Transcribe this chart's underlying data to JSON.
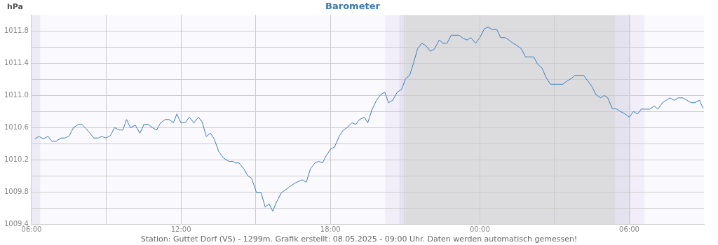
{
  "chart_data": {
    "type": "line",
    "title": "Barometer",
    "ylabel": "hPa",
    "annotations": [
      "Station: Guttet Dorf (VS) - 1299m. Grafik erstellt: 08.05.2025 - 09:00 Uhr. Daten werden automatisch gemessen!"
    ],
    "x": [
      "2025-05-07T06:08",
      "2025-05-07T06:18",
      "2025-05-07T06:28",
      "2025-05-07T06:40",
      "2025-05-07T06:49",
      "2025-05-07T06:59",
      "2025-05-07T07:11",
      "2025-05-07T07:21",
      "2025-05-07T07:31",
      "2025-05-07T07:41",
      "2025-05-07T07:53",
      "2025-05-07T08:01",
      "2025-05-07T08:11",
      "2025-05-07T08:21",
      "2025-05-07T08:30",
      "2025-05-07T08:41",
      "2025-05-07T08:49",
      "2025-05-07T08:59",
      "2025-05-07T09:10",
      "2025-05-07T09:20",
      "2025-05-07T09:31",
      "2025-05-07T09:40",
      "2025-05-07T09:49",
      "2025-05-07T09:58",
      "2025-05-07T10:10",
      "2025-05-07T10:21",
      "2025-05-07T10:31",
      "2025-05-07T10:41",
      "2025-05-07T10:51",
      "2025-05-07T11:01",
      "2025-05-07T11:11",
      "2025-05-07T11:22",
      "2025-05-07T11:32",
      "2025-05-07T11:42",
      "2025-05-07T11:50",
      "2025-05-07T12:00",
      "2025-05-07T12:10",
      "2025-05-07T12:20",
      "2025-05-07T12:31",
      "2025-05-07T12:42",
      "2025-05-07T12:51",
      "2025-05-07T13:01",
      "2025-05-07T13:11",
      "2025-05-07T13:20",
      "2025-05-07T13:31",
      "2025-05-07T13:43",
      "2025-05-07T13:55",
      "2025-05-07T14:06",
      "2025-05-07T14:11",
      "2025-05-07T14:20",
      "2025-05-07T14:31",
      "2025-05-07T14:41",
      "2025-05-07T14:50",
      "2025-05-07T15:02",
      "2025-05-07T15:13",
      "2025-05-07T15:23",
      "2025-05-07T15:32",
      "2025-05-07T15:41",
      "2025-05-07T15:50",
      "2025-05-07T16:02",
      "2025-05-07T16:13",
      "2025-05-07T16:23",
      "2025-05-07T16:35",
      "2025-05-07T16:52",
      "2025-05-07T17:02",
      "2025-05-07T17:12",
      "2025-05-07T17:23",
      "2025-05-07T17:32",
      "2025-05-07T17:41",
      "2025-05-07T17:50",
      "2025-05-07T18:00",
      "2025-05-07T18:10",
      "2025-05-07T18:22",
      "2025-05-07T18:31",
      "2025-05-07T18:40",
      "2025-05-07T18:52",
      "2025-05-07T19:01",
      "2025-05-07T19:10",
      "2025-05-07T19:22",
      "2025-05-07T19:30",
      "2025-05-07T19:40",
      "2025-05-07T19:51",
      "2025-05-07T20:01",
      "2025-05-07T20:11",
      "2025-05-07T20:20",
      "2025-05-07T20:30",
      "2025-05-07T20:41",
      "2025-05-07T20:52",
      "2025-05-07T21:01",
      "2025-05-07T21:11",
      "2025-05-07T21:20",
      "2025-05-07T21:30",
      "2025-05-07T21:40",
      "2025-05-07T21:50",
      "2025-05-07T22:01",
      "2025-05-07T22:11",
      "2025-05-07T22:22",
      "2025-05-07T22:31",
      "2025-05-07T22:41",
      "2025-05-07T22:51",
      "2025-05-07T23:10",
      "2025-05-07T23:20",
      "2025-05-07T23:29",
      "2025-05-07T23:38",
      "2025-05-07T23:50",
      "2025-05-08T00:00",
      "2025-05-08T00:11",
      "2025-05-08T00:20",
      "2025-05-08T00:30",
      "2025-05-08T00:41",
      "2025-05-08T00:50",
      "2025-05-08T01:01",
      "2025-05-08T01:10",
      "2025-05-08T01:20",
      "2025-05-08T01:30",
      "2025-05-08T01:40",
      "2025-05-08T01:50",
      "2025-05-08T02:10",
      "2025-05-08T02:19",
      "2025-05-08T02:30",
      "2025-05-08T02:39",
      "2025-05-08T02:50",
      "2025-05-08T03:20",
      "2025-05-08T03:30",
      "2025-05-08T03:40",
      "2025-05-08T03:49",
      "2025-05-08T04:10",
      "2025-05-08T04:20",
      "2025-05-08T04:30",
      "2025-05-08T04:40",
      "2025-05-08T04:51",
      "2025-05-08T05:00",
      "2025-05-08T05:08",
      "2025-05-08T05:19",
      "2025-05-08T05:30",
      "2025-05-08T05:39",
      "2025-05-08T05:50",
      "2025-05-08T06:00",
      "2025-05-08T06:10",
      "2025-05-08T06:20",
      "2025-05-08T06:29",
      "2025-05-08T06:50",
      "2025-05-08T07:00",
      "2025-05-08T07:09",
      "2025-05-08T07:20",
      "2025-05-08T07:38",
      "2025-05-08T07:48",
      "2025-05-08T07:58",
      "2025-05-08T08:08",
      "2025-05-08T08:19",
      "2025-05-08T08:29",
      "2025-05-08T08:38",
      "2025-05-08T08:49",
      "2025-05-08T08:58"
    ],
    "series": [
      {
        "color": "#3a7ebf",
        "values": [
          1010.46,
          1010.49,
          1010.46,
          1010.49,
          1010.43,
          1010.43,
          1010.47,
          1010.47,
          1010.5,
          1010.6,
          1010.64,
          1010.64,
          1010.59,
          1010.53,
          1010.47,
          1010.47,
          1010.49,
          1010.47,
          1010.5,
          1010.6,
          1010.57,
          1010.57,
          1010.7,
          1010.6,
          1010.63,
          1010.53,
          1010.64,
          1010.64,
          1010.6,
          1010.57,
          1010.66,
          1010.7,
          1010.7,
          1010.66,
          1010.77,
          1010.66,
          1010.66,
          1010.73,
          1010.66,
          1010.73,
          1010.67,
          1010.49,
          1010.53,
          1010.46,
          1010.3,
          1010.22,
          1010.18,
          1010.18,
          1010.16,
          1010.16,
          1010.09,
          1010.0,
          1009.97,
          1009.79,
          1009.79,
          1009.61,
          1009.65,
          1009.56,
          1009.67,
          1009.79,
          1009.83,
          1009.87,
          1009.91,
          1009.95,
          1009.92,
          1010.09,
          1010.16,
          1010.18,
          1010.16,
          1010.25,
          1010.33,
          1010.36,
          1010.5,
          1010.57,
          1010.6,
          1010.66,
          1010.64,
          1010.7,
          1010.73,
          1010.66,
          1010.82,
          1010.94,
          1011.01,
          1011.04,
          1010.91,
          1010.94,
          1011.04,
          1011.08,
          1011.21,
          1011.25,
          1011.4,
          1011.58,
          1011.65,
          1011.62,
          1011.55,
          1011.58,
          1011.69,
          1011.65,
          1011.65,
          1011.75,
          1011.75,
          1011.71,
          1011.69,
          1011.72,
          1011.65,
          1011.72,
          1011.83,
          1011.85,
          1011.82,
          1011.82,
          1011.72,
          1011.72,
          1011.69,
          1011.65,
          1011.62,
          1011.58,
          1011.48,
          1011.48,
          1011.39,
          1011.34,
          1011.23,
          1011.14,
          1011.14,
          1011.18,
          1011.21,
          1011.25,
          1011.25,
          1011.18,
          1011.11,
          1011.01,
          1010.97,
          1011.0,
          1010.97,
          1010.84,
          1010.83,
          1010.8,
          1010.77,
          1010.73,
          1010.8,
          1010.77,
          1010.83,
          1010.83,
          1010.87,
          1010.83,
          1010.91,
          1010.97,
          1010.94,
          1010.97,
          1010.97,
          1010.94,
          1010.91,
          1010.91,
          1010.94,
          1010.84
        ]
      }
    ],
    "xlim": [
      "2025-05-07T06:00",
      "2025-05-08T09:00"
    ],
    "xticks": [
      {
        "value": "2025-05-07T06:00",
        "label": "06:00"
      },
      {
        "value": "2025-05-07T09:00",
        "label": null
      },
      {
        "value": "2025-05-07T12:00",
        "label": "12:00"
      },
      {
        "value": "2025-05-07T15:00",
        "label": null
      },
      {
        "value": "2025-05-07T18:00",
        "label": "18:00"
      },
      {
        "value": "2025-05-07T21:00",
        "label": null
      },
      {
        "value": "2025-05-08T00:00",
        "label": "00:00"
      },
      {
        "value": "2025-05-08T03:00",
        "label": null
      },
      {
        "value": "2025-05-08T06:00",
        "label": "06:00"
      }
    ],
    "ylim": [
      1009.4,
      1012.0
    ],
    "yticks": [
      1009.4,
      {
        "value": 1009.6,
        "label": null
      },
      1009.8,
      {
        "value": 1010.0,
        "label": null
      },
      1010.2,
      {
        "value": 1010.4,
        "label": null
      },
      1010.6,
      {
        "value": 1010.8,
        "label": null
      },
      {
        "value": 1011.0,
        "label": "1011.0"
      },
      {
        "value": 1011.2,
        "label": null
      },
      1011.4,
      {
        "value": 1011.6,
        "label": null
      },
      1011.8
    ],
    "bands": [
      {
        "axis": "x",
        "from": "2025-05-07T06:00",
        "to": "2025-05-07T06:21",
        "color": "#eeebf8"
      },
      {
        "axis": "x",
        "from": "2025-05-07T20:12",
        "to": "2025-05-07T20:46",
        "color": "#f1eefa"
      },
      {
        "axis": "x",
        "from": "2025-05-07T20:46",
        "to": "2025-05-07T21:01",
        "color": "#e4e2ee"
      },
      {
        "axis": "x",
        "from": "2025-05-07T21:01",
        "to": "2025-05-08T05:27",
        "color": "#dcdcdf"
      },
      {
        "axis": "x",
        "from": "2025-05-08T05:27",
        "to": "2025-05-08T06:04",
        "color": "#e4e2ee"
      },
      {
        "axis": "x",
        "from": "2025-05-08T06:04",
        "to": "2025-05-08T06:36",
        "color": "#f1eefa"
      }
    ],
    "grid": true,
    "legend": false,
    "marker": "none",
    "line_style": "solid"
  }
}
